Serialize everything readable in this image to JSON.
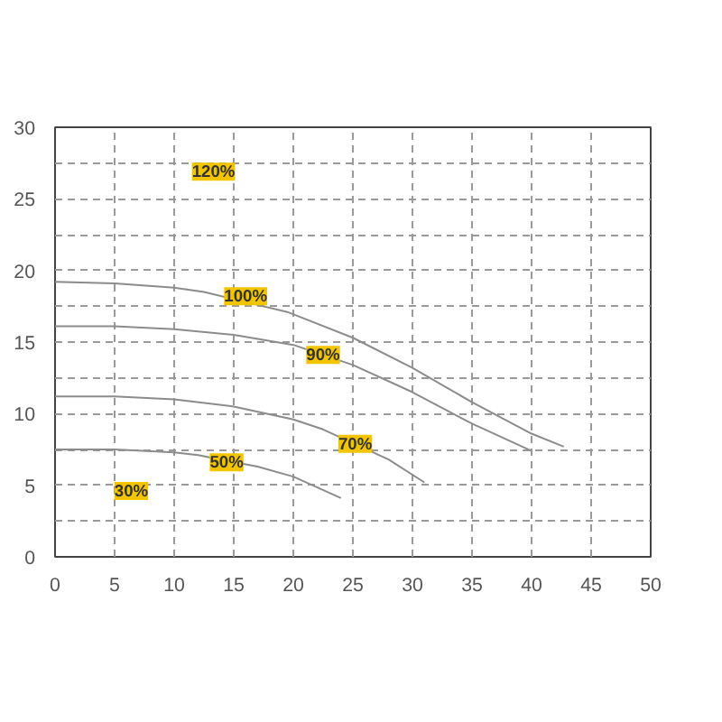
{
  "chart_data": {
    "type": "line",
    "xlim": [
      0,
      50
    ],
    "ylim": [
      0,
      30
    ],
    "xticks": [
      0,
      5,
      10,
      15,
      20,
      25,
      30,
      35,
      40,
      45,
      50
    ],
    "yticks": [
      0,
      {
        "value": 2.5,
        "label": null
      },
      5,
      {
        "value": 7.5,
        "label": null
      },
      10,
      {
        "value": 12.5,
        "label": null
      },
      15,
      {
        "value": 17.5,
        "label": null
      },
      20,
      {
        "value": 22.5,
        "label": null
      },
      25,
      {
        "value": 27.5,
        "label": null
      },
      30
    ],
    "grid": true,
    "marker": "none",
    "line_style": "solid",
    "series": [
      {
        "color": "#8c8c8c",
        "x": [
          0,
          5,
          10,
          12.5,
          19.5,
          25,
          30,
          35,
          40,
          42.7
        ],
        "values": [
          19.2,
          19.1,
          18.8,
          18.5,
          17.1,
          15.3,
          13.2,
          10.8,
          8.6,
          7.7
        ]
      },
      {
        "color": "#8c8c8c",
        "x": [
          0,
          5,
          10,
          15,
          20,
          25,
          30,
          35,
          40
        ],
        "values": [
          16.1,
          16.1,
          15.9,
          15.5,
          14.8,
          13.4,
          11.5,
          9.3,
          7.4
        ]
      },
      {
        "color": "#8c8c8c",
        "x": [
          0,
          5,
          10,
          15,
          20,
          22.5,
          28,
          31
        ],
        "values": [
          11.2,
          11.2,
          11,
          10.5,
          9.6,
          8.9,
          6.8,
          5.2
        ]
      },
      {
        "color": "#8c8c8c",
        "x": [
          0,
          5,
          10,
          12,
          17,
          20,
          24
        ],
        "values": [
          7.5,
          7.5,
          7.3,
          7.1,
          6.3,
          5.6,
          4.1
        ]
      }
    ],
    "annotations": [
      {
        "text": "120%",
        "x": 13.3,
        "y": 26.9
      },
      {
        "text": "100%",
        "x": 16,
        "y": 18.2
      },
      {
        "text": "90%",
        "x": 22.5,
        "y": 14.1
      },
      {
        "text": "70%",
        "x": 25.2,
        "y": 7.9
      },
      {
        "text": "50%",
        "x": 14.4,
        "y": 6.6
      },
      {
        "text": "30%",
        "x": 6.4,
        "y": 4.6
      }
    ]
  }
}
